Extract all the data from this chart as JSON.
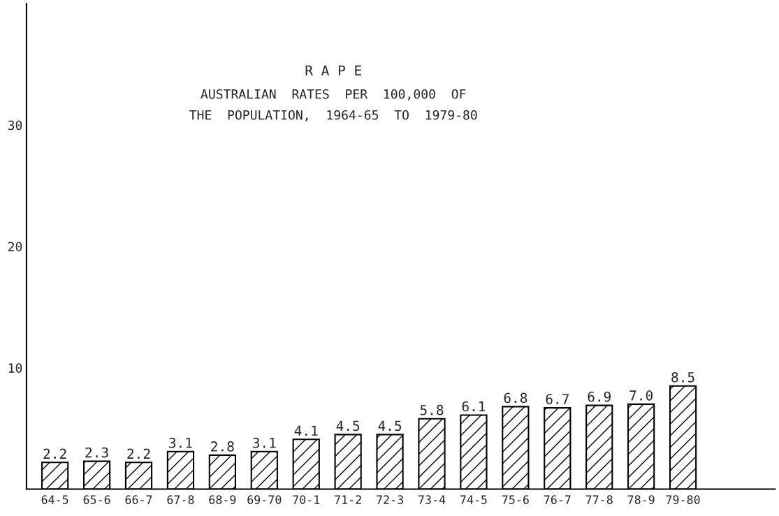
{
  "chart_data": {
    "type": "bar",
    "title": "R A P E",
    "subtitle": "AUSTRALIAN  RATES  PER  100,000  OF\nTHE  POPULATION,  1964-65  TO  1979-80",
    "categories": [
      "64-5",
      "65-6",
      "66-7",
      "67-8",
      "68-9",
      "69-70",
      "70-1",
      "71-2",
      "72-3",
      "73-4",
      "74-5",
      "75-6",
      "76-7",
      "77-8",
      "78-9",
      "79-80"
    ],
    "values": [
      2.2,
      2.3,
      2.2,
      3.1,
      2.8,
      3.1,
      4.1,
      4.5,
      4.5,
      5.8,
      6.1,
      6.8,
      6.7,
      6.9,
      7.0,
      8.5
    ],
    "value_labels": [
      "2.2",
      "2.3",
      "2.2",
      "3.1",
      "2.8",
      "3.1",
      "4.1",
      "4.5",
      "4.5",
      "5.8",
      "6.1",
      "6.8",
      "6.7",
      "6.9",
      "7.0",
      "8.5"
    ],
    "color": "#000000",
    "ylim": [
      0,
      40
    ],
    "yticks": [
      10,
      20,
      30
    ],
    "grid": false
  }
}
